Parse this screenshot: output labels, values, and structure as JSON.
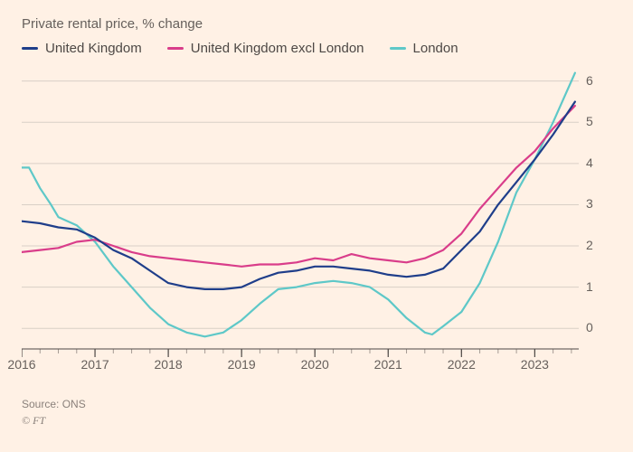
{
  "subtitle": "Private rental price, % change",
  "legend": {
    "uk": "United Kingdom",
    "uk_excl": "United Kingdom excl London",
    "london": "London"
  },
  "source": "Source: ONS",
  "credit": "© FT",
  "chart": {
    "type": "line",
    "background_color": "#fff1e5",
    "grid_color": "#d9cfc6",
    "axis_color": "#4d4845",
    "line_width": 2.2,
    "label_fontsize": 14,
    "subtitle_fontsize": 15,
    "ylim": [
      -0.5,
      6.3
    ],
    "ytick_labels": [
      "0",
      "1",
      "2",
      "3",
      "4",
      "5",
      "6"
    ],
    "yticks": [
      0,
      1,
      2,
      3,
      4,
      5,
      6
    ],
    "xlim": [
      2016.0,
      2023.6
    ],
    "xticks": [
      2016,
      2017,
      2018,
      2019,
      2020,
      2021,
      2022,
      2023
    ],
    "xtick_labels": [
      "2016",
      "2017",
      "2018",
      "2019",
      "2020",
      "2021",
      "2022",
      "2023"
    ],
    "series": {
      "uk": {
        "color": "#1f3e8a",
        "x": [
          2016.0,
          2016.25,
          2016.5,
          2016.75,
          2017.0,
          2017.25,
          2017.5,
          2017.75,
          2018.0,
          2018.25,
          2018.5,
          2018.75,
          2019.0,
          2019.25,
          2019.5,
          2019.75,
          2020.0,
          2020.25,
          2020.5,
          2020.75,
          2021.0,
          2021.25,
          2021.5,
          2021.75,
          2022.0,
          2022.25,
          2022.5,
          2022.75,
          2023.0,
          2023.25,
          2023.55
        ],
        "y": [
          2.6,
          2.55,
          2.45,
          2.4,
          2.2,
          1.9,
          1.7,
          1.4,
          1.1,
          1.0,
          0.95,
          0.95,
          1.0,
          1.2,
          1.35,
          1.4,
          1.5,
          1.5,
          1.45,
          1.4,
          1.3,
          1.25,
          1.3,
          1.45,
          1.9,
          2.35,
          3.0,
          3.55,
          4.1,
          4.7,
          5.5
        ]
      },
      "uk_excl": {
        "color": "#d93d8a",
        "x": [
          2016.0,
          2016.25,
          2016.5,
          2016.75,
          2017.0,
          2017.25,
          2017.5,
          2017.75,
          2018.0,
          2018.25,
          2018.5,
          2018.75,
          2019.0,
          2019.25,
          2019.5,
          2019.75,
          2020.0,
          2020.25,
          2020.5,
          2020.75,
          2021.0,
          2021.25,
          2021.5,
          2021.75,
          2022.0,
          2022.25,
          2022.5,
          2022.75,
          2023.0,
          2023.25,
          2023.55
        ],
        "y": [
          1.85,
          1.9,
          1.95,
          2.1,
          2.15,
          2.0,
          1.85,
          1.75,
          1.7,
          1.65,
          1.6,
          1.55,
          1.5,
          1.55,
          1.55,
          1.6,
          1.7,
          1.65,
          1.8,
          1.7,
          1.65,
          1.6,
          1.7,
          1.9,
          2.3,
          2.9,
          3.4,
          3.9,
          4.3,
          4.85,
          5.4
        ]
      },
      "london": {
        "color": "#5ec8c8",
        "x": [
          2016.0,
          2016.1,
          2016.25,
          2016.4,
          2016.5,
          2016.75,
          2017.0,
          2017.25,
          2017.5,
          2017.75,
          2018.0,
          2018.25,
          2018.5,
          2018.75,
          2019.0,
          2019.25,
          2019.5,
          2019.75,
          2020.0,
          2020.25,
          2020.5,
          2020.75,
          2021.0,
          2021.25,
          2021.5,
          2021.6,
          2021.75,
          2022.0,
          2022.25,
          2022.5,
          2022.75,
          2023.0,
          2023.25,
          2023.55
        ],
        "y": [
          3.9,
          3.9,
          3.4,
          3.0,
          2.7,
          2.5,
          2.1,
          1.5,
          1.0,
          0.5,
          0.1,
          -0.1,
          -0.2,
          -0.1,
          0.2,
          0.6,
          0.95,
          1.0,
          1.1,
          1.15,
          1.1,
          1.0,
          0.7,
          0.25,
          -0.1,
          -0.15,
          0.05,
          0.4,
          1.1,
          2.1,
          3.3,
          4.1,
          5.0,
          6.2
        ]
      }
    }
  }
}
